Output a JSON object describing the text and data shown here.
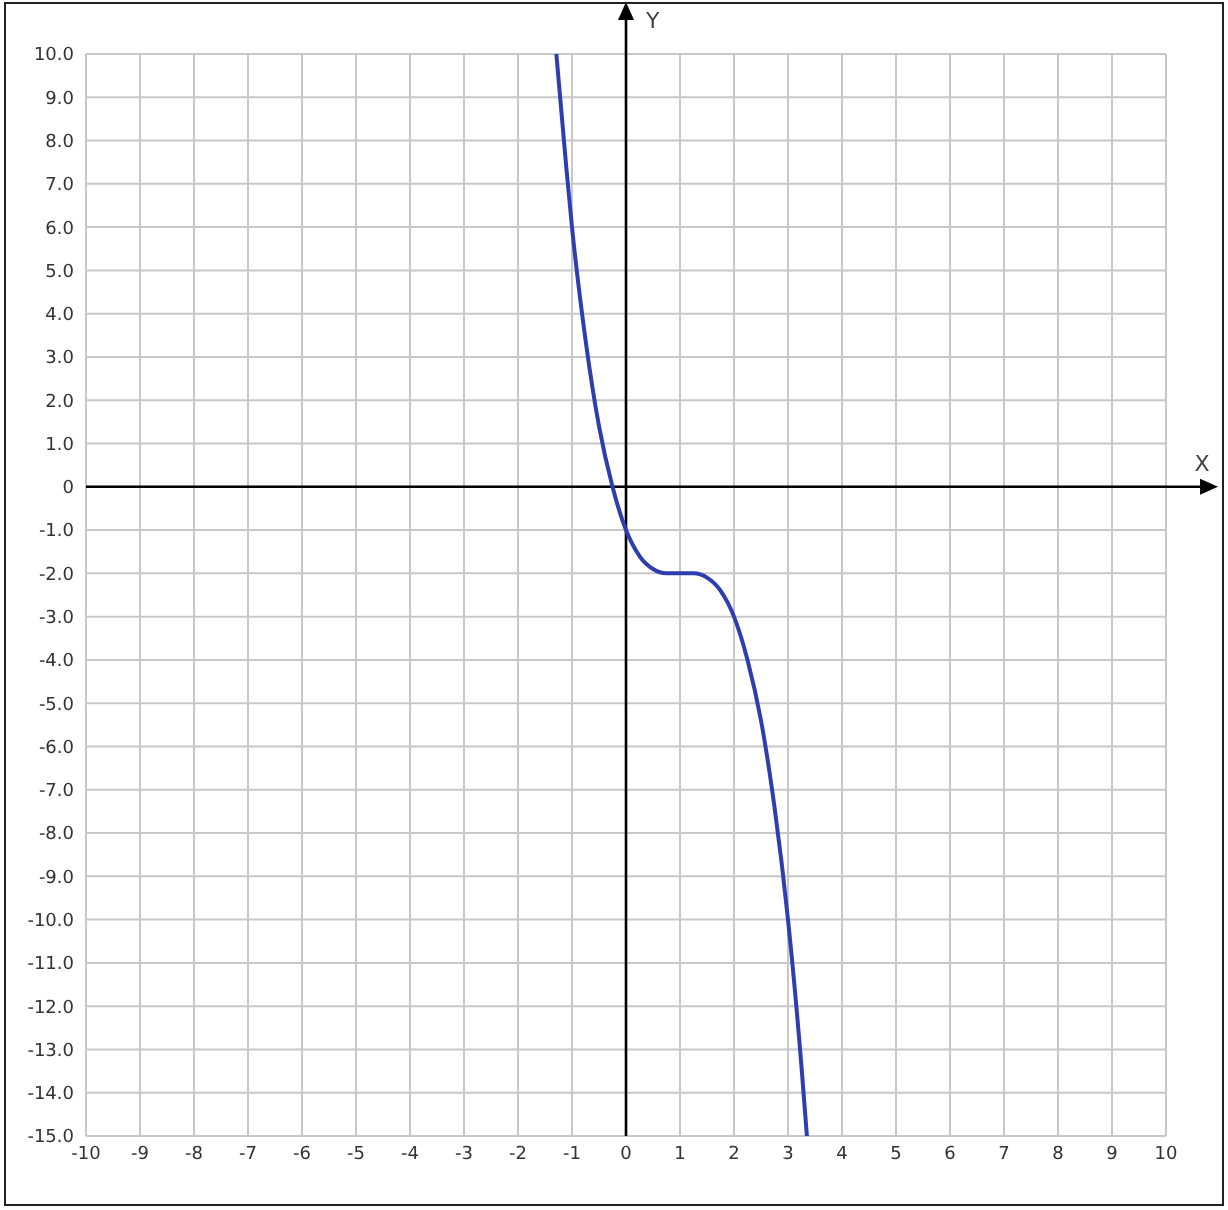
{
  "chart_data": {
    "type": "line",
    "xlabel": "X",
    "ylabel": "Y",
    "x": [
      -1.29,
      -1.1,
      -1.0,
      -0.75,
      -0.5,
      -0.25,
      0,
      0.25,
      0.5,
      0.75,
      1.0,
      1.25,
      1.5,
      1.75,
      2.0,
      2.25,
      2.5,
      2.75,
      3.0,
      3.25,
      3.35
    ],
    "series": [
      {
        "color": "#2e3db0",
        "values": [
          10.0,
          7.3,
          6.0,
          3.4,
          1.4,
          0.0,
          -1.0,
          -1.6,
          -1.9,
          -2.0,
          -2.0,
          -2.0,
          -2.1,
          -2.4,
          -3.0,
          -4.0,
          -5.4,
          -7.4,
          -10.0,
          -13.4,
          -15.0
        ]
      }
    ],
    "xlim": [
      -10,
      10
    ],
    "ylim": [
      -15,
      10
    ],
    "xticks": [
      -10,
      -9,
      -8,
      -7,
      -6,
      -5,
      -4,
      -3,
      -2,
      -1,
      0,
      1,
      2,
      3,
      4,
      5,
      6,
      7,
      8,
      9,
      10
    ],
    "yticks": [
      {
        "value": 10,
        "label": "10.0"
      },
      {
        "value": 9,
        "label": "9.0"
      },
      {
        "value": 8,
        "label": "8.0"
      },
      {
        "value": 7,
        "label": "7.0"
      },
      {
        "value": 6,
        "label": "6.0"
      },
      {
        "value": 5,
        "label": "5.0"
      },
      {
        "value": 4,
        "label": "4.0"
      },
      {
        "value": 3,
        "label": "3.0"
      },
      {
        "value": 2,
        "label": "2.0"
      },
      {
        "value": 1,
        "label": "1.0"
      },
      0,
      {
        "value": -1,
        "label": "-1.0"
      },
      {
        "value": -2,
        "label": "-2.0"
      },
      {
        "value": -3,
        "label": "-3.0"
      },
      {
        "value": -4,
        "label": "-4.0"
      },
      {
        "value": -5,
        "label": "-5.0"
      },
      {
        "value": -6,
        "label": "-6.0"
      },
      {
        "value": -7,
        "label": "-7.0"
      },
      {
        "value": -8,
        "label": "-8.0"
      },
      {
        "value": -9,
        "label": "-9.0"
      },
      {
        "value": -10,
        "label": "-10.0"
      },
      {
        "value": -11,
        "label": "-11.0"
      },
      {
        "value": -12,
        "label": "-12.0"
      },
      {
        "value": -13,
        "label": "-13.0"
      },
      {
        "value": -14,
        "label": "-14.0"
      },
      {
        "value": -15,
        "label": "-15.0"
      }
    ],
    "grid": true
  }
}
